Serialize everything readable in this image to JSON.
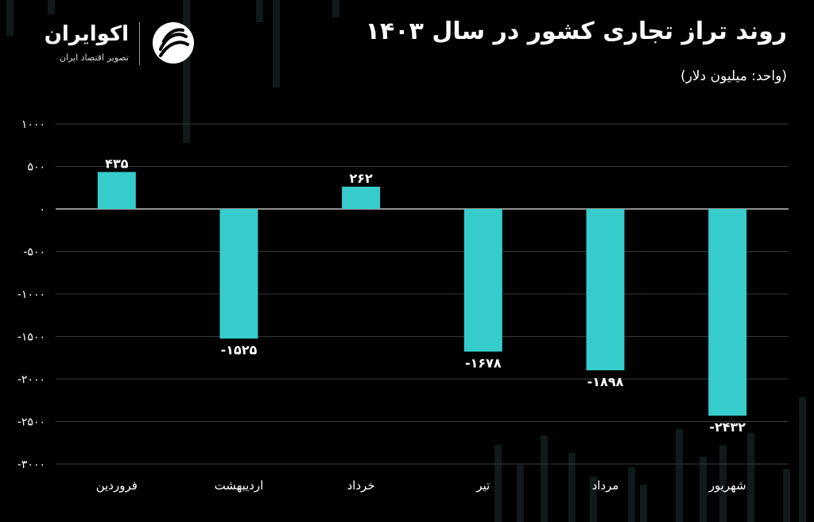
{
  "header": {
    "title": "روند تراز تجاری کشور در سال ۱۴۰۳",
    "unit_note": "(واحد: میلیون دلار)"
  },
  "logo": {
    "name": "اکوایران",
    "tagline": "تصویر اقتصاد ایران",
    "icon": "ecoiran-swirl-icon"
  },
  "colors": {
    "background": "#000000",
    "bar": "#36cccc",
    "text": "#ffffff",
    "grid": "#3a3a3a",
    "zero_line": "#bfbfbf"
  },
  "chart_data": {
    "type": "bar",
    "categories": [
      "فروردین",
      "اردیبهشت",
      "خرداد",
      "تیر",
      "مرداد",
      "شهریور"
    ],
    "values": [
      435,
      -1525,
      262,
      -1678,
      -1898,
      -2432
    ],
    "value_labels": [
      "۴۳۵",
      "-۱۵۲۵",
      "۲۶۲",
      "-۱۶۷۸",
      "-۱۸۹۸",
      "-۲۴۳۲"
    ],
    "ylim": [
      -3000,
      1000
    ],
    "yticks": [
      1000,
      500,
      0,
      -500,
      -1000,
      -1500,
      -2000,
      -2500,
      -3000
    ],
    "ytick_labels": [
      "۱۰۰۰",
      "۵۰۰",
      "۰",
      "-۵۰۰",
      "-۱۰۰۰",
      "-۱۵۰۰",
      "-۲۰۰۰",
      "-۲۵۰۰",
      "-۳۰۰۰"
    ],
    "grid": true,
    "legend": "none"
  }
}
